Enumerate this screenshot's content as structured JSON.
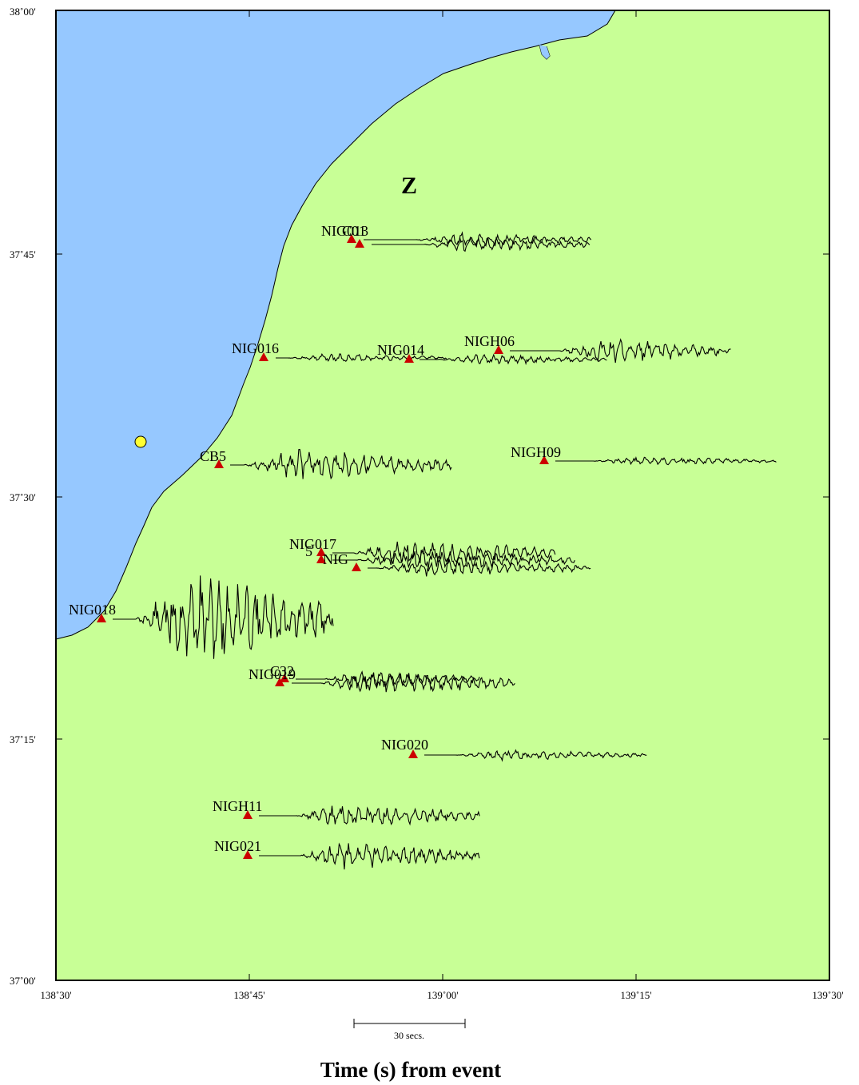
{
  "map": {
    "channel_label": "Z",
    "axis_title": "Time (s) from event",
    "scale_bar_label": "30 secs.",
    "lat_ticks": [
      "38˚00'",
      "37˚45'",
      "37˚30'",
      "37˚15'",
      "37˚00'"
    ],
    "lon_ticks": [
      "138˚30'",
      "138˚45'",
      "139˚00'",
      "139˚15'",
      "139˚30'"
    ],
    "colors": {
      "land": "#c8ff96",
      "sea": "#96c8ff",
      "station": "#cc0000",
      "epicenter": "#ffff33",
      "frame": "#000000"
    }
  },
  "stations": [
    {
      "name": "NIG013"
    },
    {
      "name": "C01"
    },
    {
      "name": "NIG016"
    },
    {
      "name": "NIG014"
    },
    {
      "name": "NIGH06"
    },
    {
      "name": "CB5"
    },
    {
      "name": "NIGH09"
    },
    {
      "name": "NIG017"
    },
    {
      "name": "5"
    },
    {
      "name": "NIG"
    },
    {
      "name": "NIG018"
    },
    {
      "name": "NIG019"
    },
    {
      "name": "C32"
    },
    {
      "name": "NIG020"
    },
    {
      "name": "NIGH11"
    },
    {
      "name": "NIG021"
    }
  ]
}
